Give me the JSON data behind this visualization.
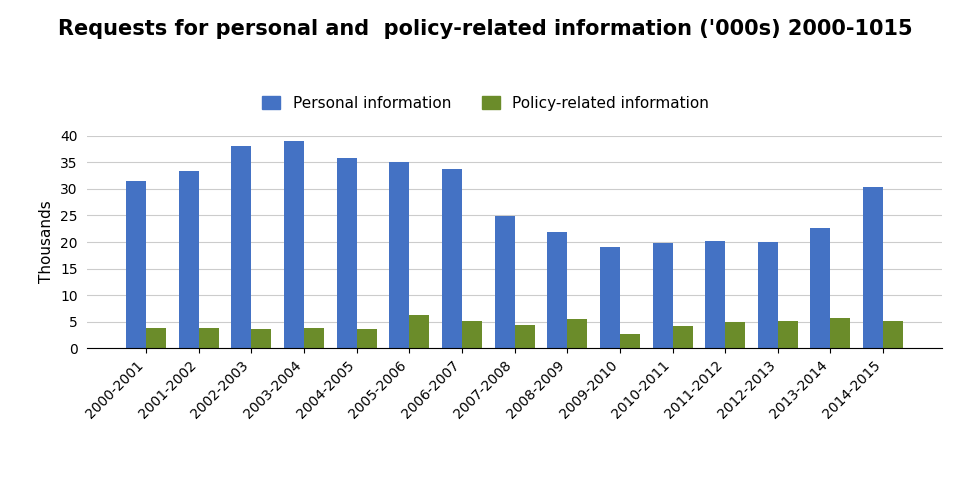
{
  "title": "Requests for personal and  policy-related information ('000s) 2000-1015",
  "ylabel": "Thousands",
  "categories": [
    "2000-2001",
    "2001-2002",
    "2002-2003",
    "2003-2004",
    "2004-2005",
    "2005-2006",
    "2006-2007",
    "2007-2008",
    "2008-2009",
    "2009-2010",
    "2010-2011",
    "2011-2012",
    "2012-2013",
    "2013-2014",
    "2014-2015"
  ],
  "personal": [
    31.5,
    33.4,
    38.1,
    39.0,
    35.7,
    35.0,
    33.8,
    24.9,
    21.8,
    19.0,
    19.8,
    20.1,
    20.0,
    22.6,
    30.4
  ],
  "policy": [
    3.9,
    3.9,
    3.6,
    3.9,
    3.7,
    6.2,
    5.1,
    4.5,
    5.5,
    2.8,
    4.2,
    4.9,
    5.1,
    5.7,
    5.2
  ],
  "personal_color": "#4472C4",
  "policy_color": "#6B8C2A",
  "ylim": [
    0,
    40
  ],
  "yticks": [
    0,
    5,
    10,
    15,
    20,
    25,
    30,
    35,
    40
  ],
  "legend_personal": "Personal information",
  "legend_policy": "Policy-related information",
  "title_fontsize": 15,
  "axis_fontsize": 11,
  "tick_fontsize": 10,
  "background_color": "#FFFFFF",
  "grid_color": "#CCCCCC"
}
